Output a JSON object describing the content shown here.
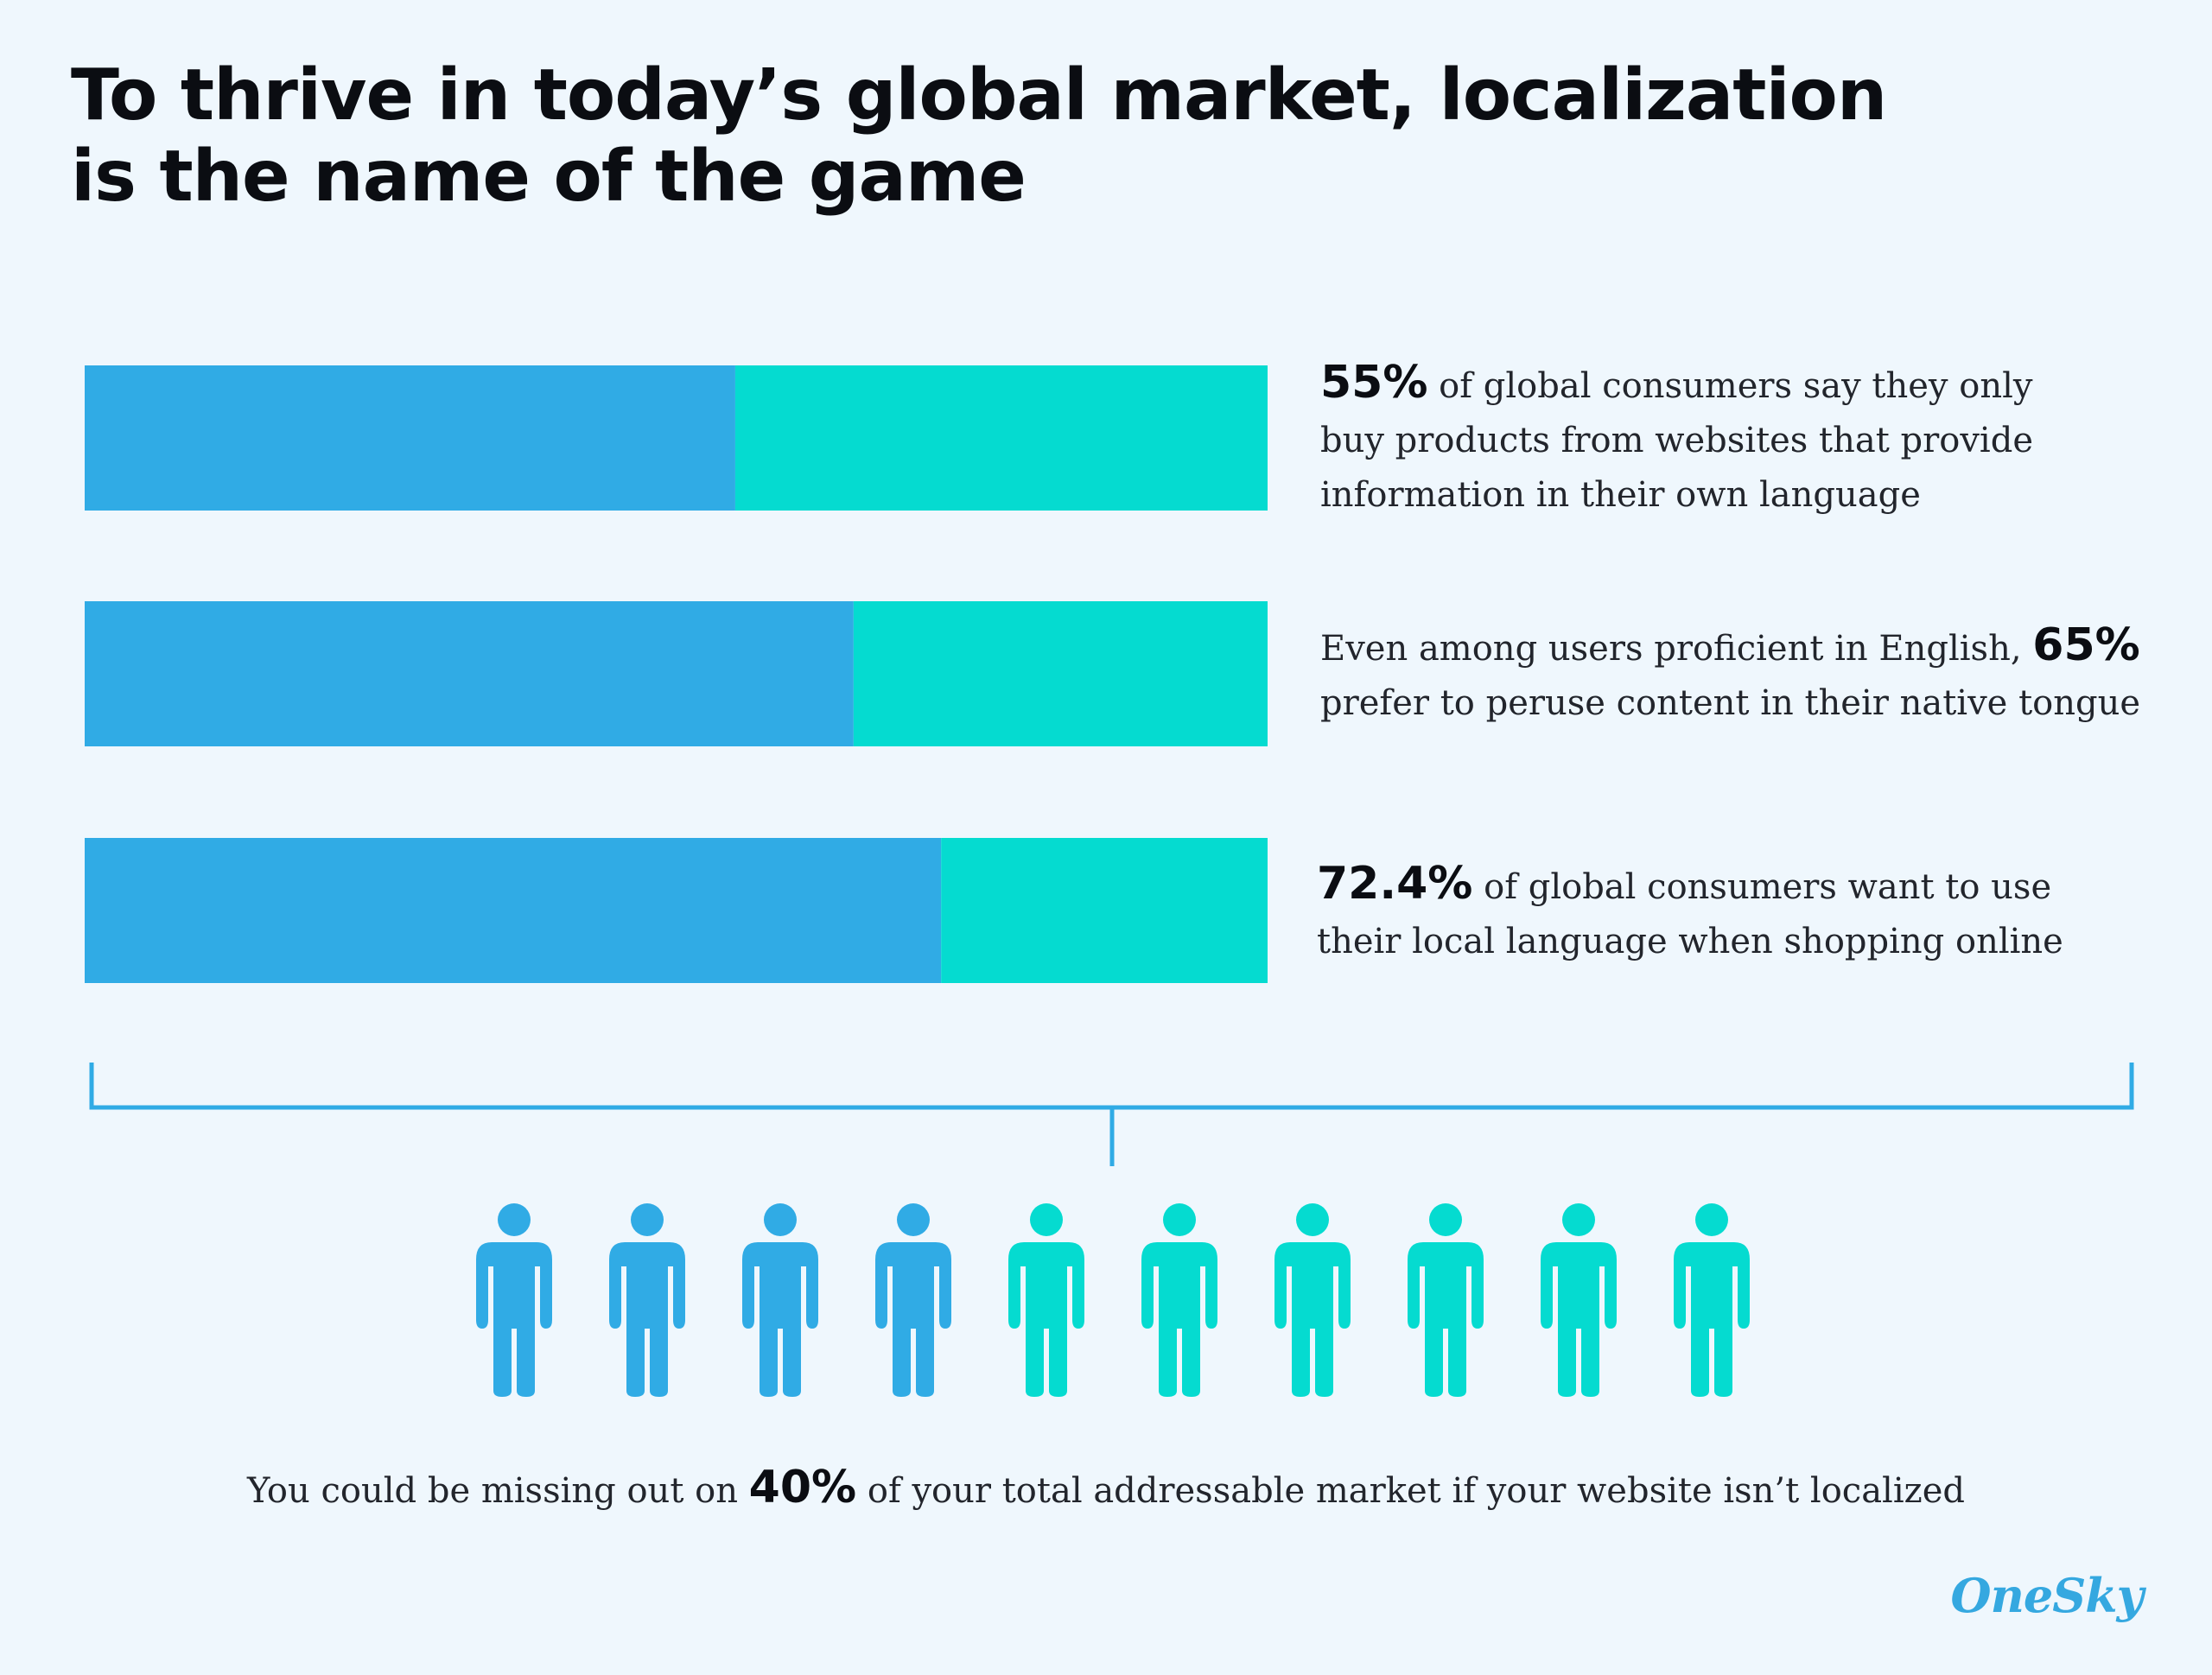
{
  "title_lines": [
    "To thrive in today’s global market, localization",
    "is the name of the game"
  ],
  "colors": {
    "primary": "#30abe5",
    "secondary": "#05dbd0",
    "background": "#eff7fd"
  },
  "chart_data": {
    "type": "bar",
    "orientation": "horizontal",
    "stacked": true,
    "ylim": [
      0,
      100
    ],
    "bars": [
      {
        "value": 55,
        "remainder": 45
      },
      {
        "value": 65,
        "remainder": 35
      },
      {
        "value": 72.4,
        "remainder": 27.6
      }
    ],
    "people_total": 10,
    "people_highlighted": 4
  },
  "stats": [
    {
      "pre": "",
      "num": "55%",
      "post": " of global consumers say they only buy products from websites that provide information in their own language"
    },
    {
      "pre": "Even among users proficient in English, ",
      "num": "65%",
      "post": " prefer to peruse content in their native tongue"
    },
    {
      "pre": "",
      "num": "72.4%",
      "post": " of global consumers want to use their local language when shopping online"
    }
  ],
  "bottom": {
    "pre": "You could be missing out on ",
    "num": "40%",
    "post": " of your total addressable market if your website isn’t localized"
  },
  "logo": "OneSky"
}
